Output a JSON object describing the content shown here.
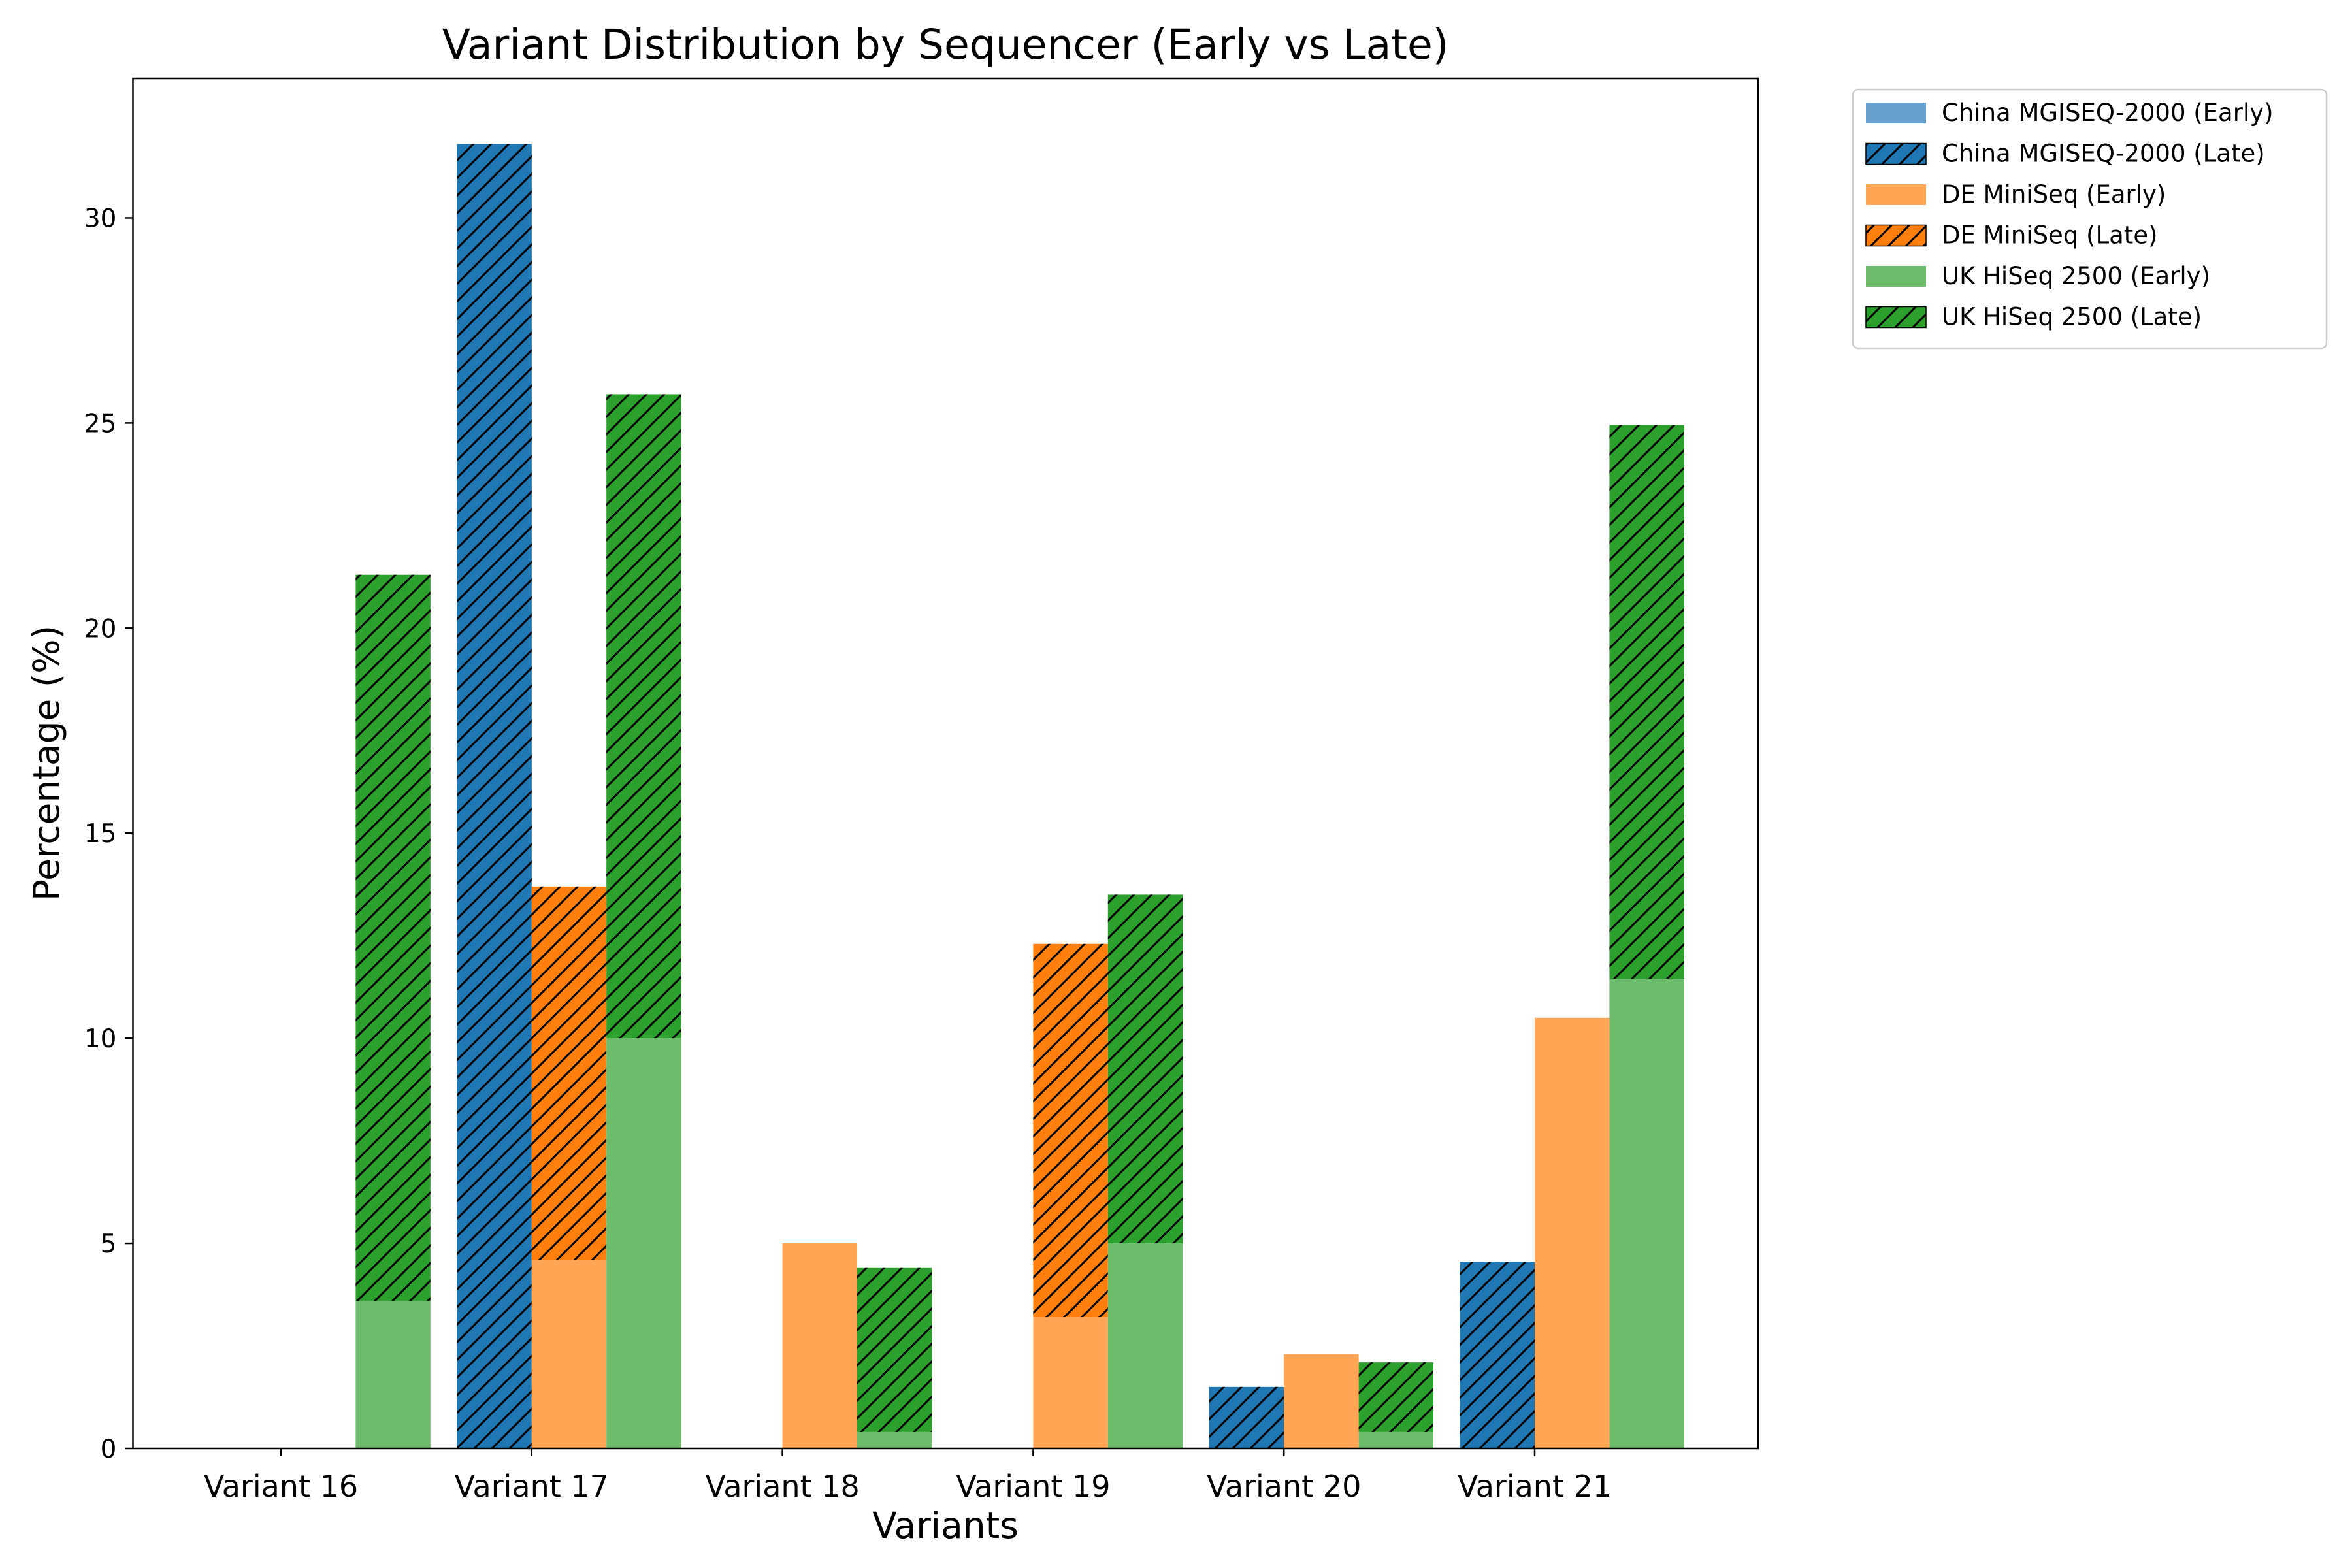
{
  "chart_data": {
    "type": "bar",
    "title": "Variant Distribution by Sequencer (Early vs Late)",
    "xlabel": "Variants",
    "ylabel": "Percentage (%)",
    "ylim": [
      0,
      33.4
    ],
    "yticks": [
      0,
      5,
      10,
      15,
      20,
      25,
      30
    ],
    "grid": false,
    "legend_position": "outside-top-right",
    "categories": [
      "Variant 16",
      "Variant 17",
      "Variant 18",
      "Variant 19",
      "Variant 20",
      "Variant 21"
    ],
    "groups": [
      {
        "name": "China MGISEQ-2000",
        "color": "#1f77b4",
        "early_color": "#66a1cf",
        "early": [
          0,
          0,
          0,
          0,
          0,
          0
        ],
        "late": [
          0,
          31.8,
          0,
          0,
          1.5,
          4.55
        ]
      },
      {
        "name": "DE MiniSeq",
        "color": "#ff7f0e",
        "early_color": "#ffa553",
        "early": [
          0,
          4.6,
          5.0,
          3.2,
          2.3,
          10.5
        ],
        "late": [
          0,
          9.1,
          0,
          9.1,
          0,
          0
        ]
      },
      {
        "name": "UK HiSeq 2500",
        "color": "#2ca02c",
        "early_color": "#6cbc6c",
        "early": [
          3.6,
          10.0,
          0.4,
          5.0,
          0.4,
          11.45
        ],
        "late": [
          17.7,
          15.7,
          4.0,
          8.5,
          1.7,
          13.5
        ]
      }
    ],
    "legend": [
      {
        "label": "China MGISEQ-2000 (Early)",
        "group": 0,
        "hatched": false
      },
      {
        "label": "China MGISEQ-2000 (Late)",
        "group": 0,
        "hatched": true
      },
      {
        "label": "DE MiniSeq (Early)",
        "group": 1,
        "hatched": false
      },
      {
        "label": "DE MiniSeq (Late)",
        "group": 1,
        "hatched": true
      },
      {
        "label": "UK HiSeq 2500 (Early)",
        "group": 2,
        "hatched": false
      },
      {
        "label": "UK HiSeq 2500 (Late)",
        "group": 2,
        "hatched": true
      }
    ]
  }
}
